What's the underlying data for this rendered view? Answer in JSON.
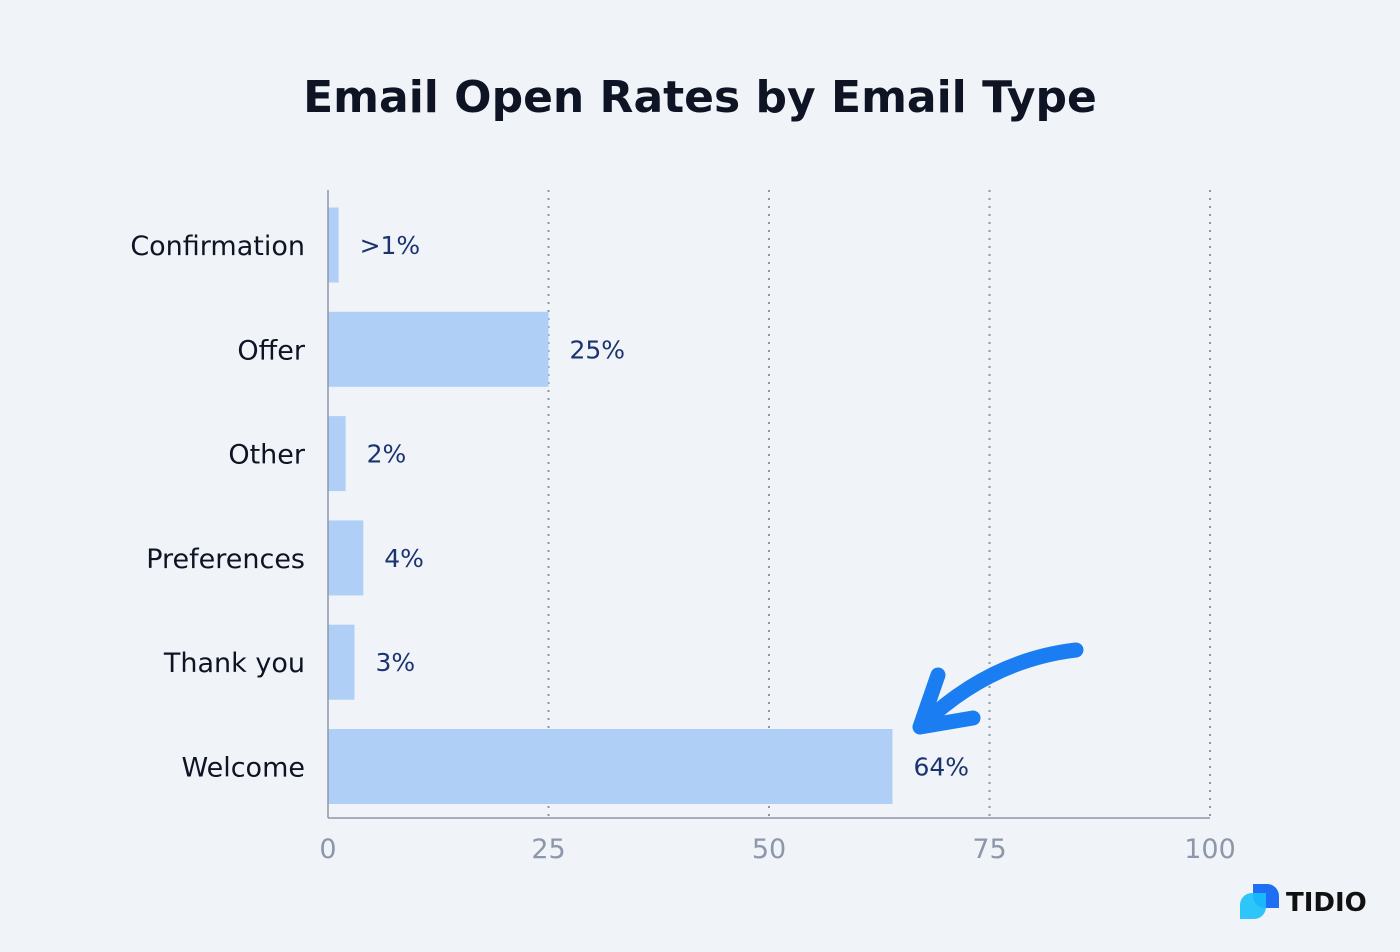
{
  "chart_data": {
    "type": "bar",
    "orientation": "horizontal",
    "title": "Email Open Rates by Email Type",
    "categories": [
      "Confirmation",
      "Offer",
      "Other",
      "Preferences",
      "Thank you",
      "Welcome"
    ],
    "values": [
      1.2,
      25,
      2,
      4,
      3,
      64
    ],
    "data_labels": [
      ">1%",
      "25%",
      "2%",
      "4%",
      "3%",
      "64%"
    ],
    "xlim": [
      0,
      100
    ],
    "xticks": [
      0,
      25,
      50,
      75,
      100
    ],
    "xtick_labels": [
      "0",
      "25",
      "50",
      "75",
      "100"
    ],
    "xlabel": "",
    "ylabel": "",
    "grid": "vertical dotted",
    "highlight": {
      "category": "Welcome",
      "annotation": "arrow"
    },
    "colors": {
      "bar": "#afcff7",
      "arrow": "#1a7ef2",
      "label": "#1b3470"
    }
  },
  "brand": {
    "name": "TIDIO"
  }
}
